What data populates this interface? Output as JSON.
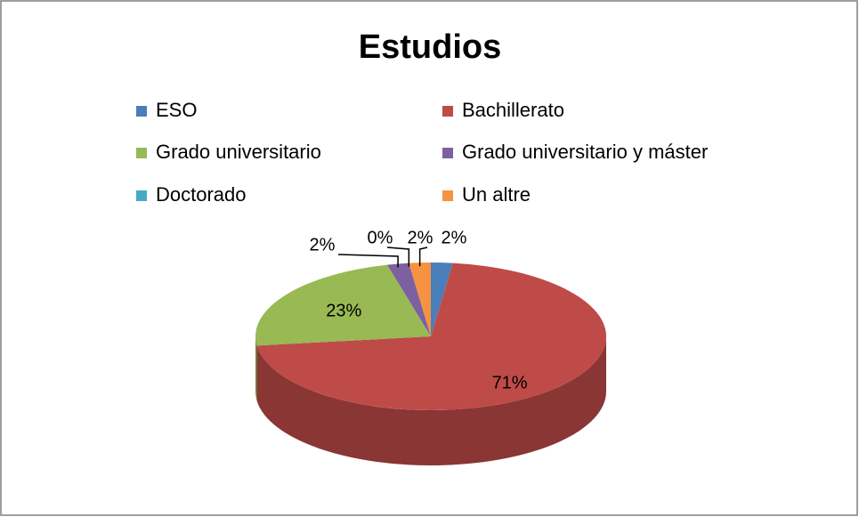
{
  "chart_data": {
    "type": "pie",
    "title": "Estudios",
    "categories": [
      "ESO",
      "Bachillerato",
      "Grado universitario",
      "Grado universitario y máster",
      "Doctorado",
      "Un altre"
    ],
    "values": [
      2,
      71,
      23,
      2,
      0,
      2
    ],
    "value_labels": [
      "2%",
      "71%",
      "23%",
      "2%",
      "0%",
      "2%"
    ],
    "colors": [
      "#4a7ebb",
      "#be4b48",
      "#98b954",
      "#7d60a0",
      "#46aac5",
      "#f69240"
    ],
    "legend": "top"
  }
}
